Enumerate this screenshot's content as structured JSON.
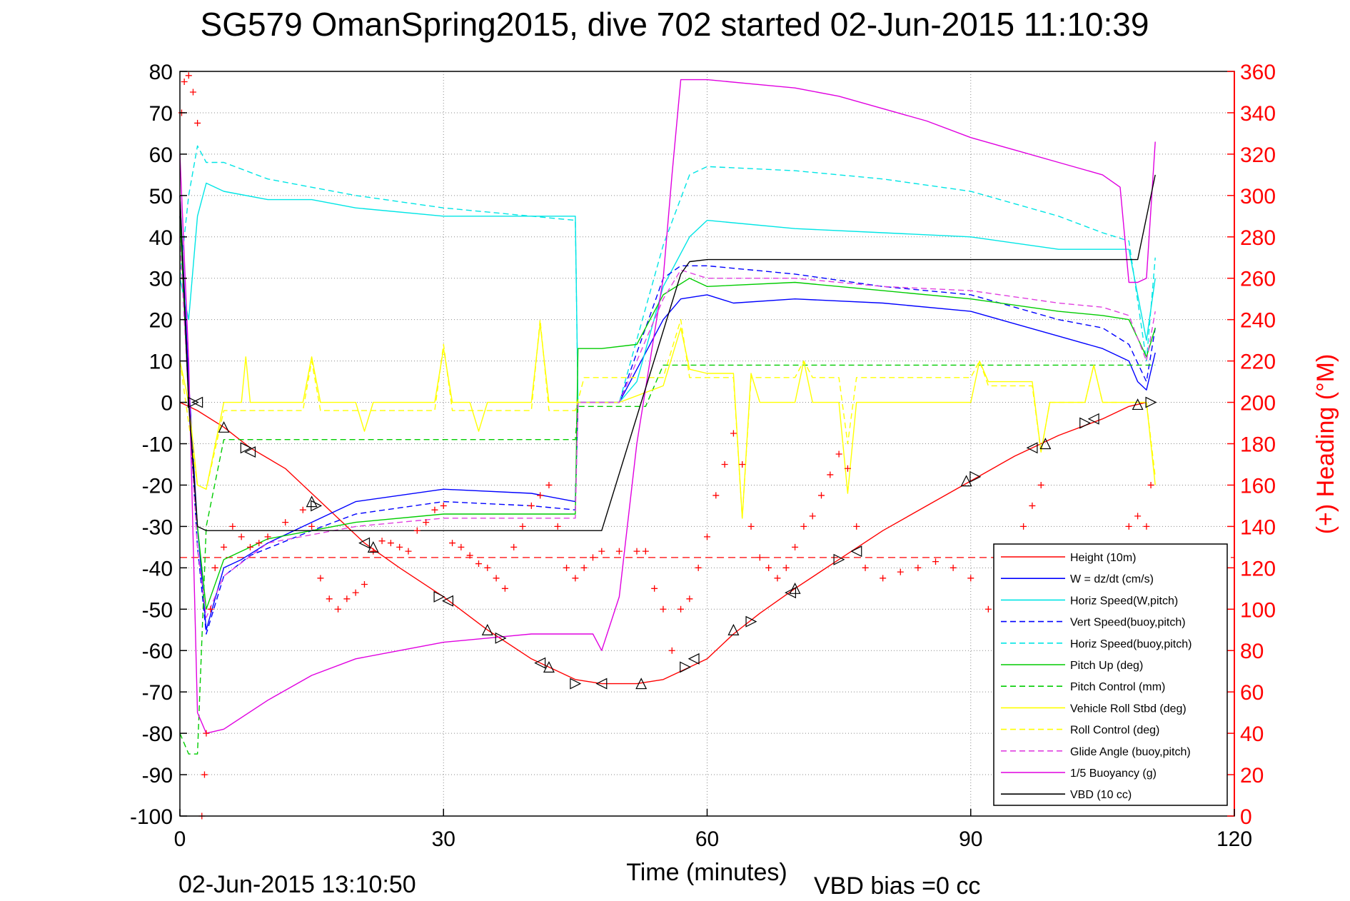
{
  "chart_data": {
    "type": "line",
    "title": "SG579 OmanSpring2015, dive 702 started 02-Jun-2015 11:10:39",
    "xlabel": "Time (minutes)",
    "ylabel_right": "(+) Heading (°M)",
    "xlim": [
      0,
      120
    ],
    "ylim": [
      -100,
      80
    ],
    "ylim_right": [
      0,
      360
    ],
    "x_ticks": [
      "0",
      "30",
      "60",
      "90",
      "120"
    ],
    "y_ticks": [
      "80",
      "70",
      "60",
      "50",
      "40",
      "30",
      "20",
      "10",
      "0",
      "-10",
      "-20",
      "-30",
      "-40",
      "-50",
      "-60",
      "-70",
      "-80",
      "-90",
      "-100"
    ],
    "y_ticks_right": [
      "360",
      "340",
      "320",
      "300",
      "280",
      "260",
      "240",
      "220",
      "200",
      "180",
      "160",
      "140",
      "120",
      "100",
      "80",
      "60",
      "40",
      "20",
      "0"
    ],
    "grid": true,
    "legend_placement": "bottom-right",
    "footer_left": "02-Jun-2015 13:10:50",
    "footer_right": "VBD bias =0 cc",
    "heading_reference": 125,
    "series": [
      {
        "name": "Height (10m)",
        "color": "#ff0000",
        "dash": "solid",
        "x": [
          0,
          1,
          2,
          5,
          8,
          12,
          15,
          18,
          21,
          25,
          30,
          35,
          40,
          45,
          48,
          52,
          55,
          57,
          60,
          63,
          66,
          70,
          75,
          80,
          85,
          90,
          95,
          100,
          105,
          108,
          110
        ],
        "y": [
          0,
          -1,
          -2,
          -6,
          -11,
          -16,
          -22,
          -28,
          -34,
          -40,
          -47,
          -55,
          -62,
          -67,
          -68,
          -68,
          -67,
          -65,
          -62,
          -56,
          -51,
          -45,
          -38,
          -31,
          -25,
          -19,
          -13,
          -8,
          -4,
          -1,
          0
        ]
      },
      {
        "name": "W = dz/dt (cm/s)",
        "color": "#0000ff",
        "dash": "solid",
        "x": [
          0,
          1,
          2,
          3,
          5,
          7,
          10,
          15,
          20,
          30,
          40,
          45,
          45.3,
          50,
          55,
          57,
          60,
          63,
          70,
          80,
          90,
          100,
          105,
          108,
          109,
          110,
          111
        ],
        "y": [
          50,
          5,
          -30,
          -55,
          -40,
          -38,
          -34,
          -29,
          -24,
          -21,
          -22,
          -24,
          0,
          0,
          20,
          25,
          26,
          24,
          25,
          24,
          22,
          16,
          13,
          10,
          5,
          3,
          12
        ]
      },
      {
        "name": "Horiz Speed(W,pitch)",
        "color": "#00e5e5",
        "dash": "solid",
        "x": [
          0,
          1,
          2,
          3,
          5,
          10,
          15,
          20,
          30,
          40,
          45,
          45.3,
          50,
          52,
          55,
          58,
          60,
          70,
          80,
          90,
          100,
          105,
          108,
          110,
          111
        ],
        "y": [
          30,
          20,
          45,
          53,
          51,
          49,
          49,
          47,
          45,
          45,
          45,
          0,
          0,
          5,
          28,
          40,
          44,
          42,
          41,
          40,
          37,
          37,
          37,
          15,
          30
        ]
      },
      {
        "name": "Vert Speed(buoy,pitch)",
        "color": "#0000ff",
        "dash": "dashed",
        "x": [
          0,
          1,
          2,
          3,
          5,
          8,
          15,
          20,
          30,
          40,
          45,
          45.3,
          50,
          55,
          57,
          60,
          70,
          80,
          90,
          100,
          105,
          108,
          110,
          111
        ],
        "y": [
          45,
          0,
          -35,
          -56,
          -42,
          -37,
          -31,
          -27,
          -24,
          -25,
          -26,
          0,
          0,
          30,
          33,
          33,
          31,
          28,
          26,
          20,
          18,
          14,
          5,
          18
        ]
      },
      {
        "name": "Horiz Speed(buoy,pitch)",
        "color": "#00e5e5",
        "dash": "dashed",
        "x": [
          0,
          1,
          2,
          3,
          5,
          10,
          20,
          30,
          40,
          45,
          45.3,
          50,
          55,
          58,
          60,
          70,
          80,
          90,
          100,
          105,
          108,
          110,
          111
        ],
        "y": [
          30,
          50,
          62,
          58,
          58,
          54,
          50,
          47,
          45,
          44,
          0,
          0,
          38,
          55,
          57,
          56,
          54,
          51,
          45,
          41,
          39,
          10,
          35
        ]
      },
      {
        "name": "Pitch Up (deg)",
        "color": "#00cc00",
        "dash": "solid",
        "x": [
          0,
          1,
          2,
          3,
          5,
          10,
          20,
          30,
          40,
          45,
          45.3,
          48,
          52,
          55,
          58,
          60,
          70,
          80,
          90,
          100,
          105,
          108,
          110,
          111
        ],
        "y": [
          45,
          0,
          -30,
          -50,
          -38,
          -33,
          -29,
          -27,
          -27,
          -27,
          13,
          13,
          14,
          26,
          30,
          28,
          29,
          27,
          25,
          22,
          21,
          20,
          11,
          18
        ]
      },
      {
        "name": "Pitch Control (mm)",
        "color": "#00cc00",
        "dash": "dashed",
        "x": [
          0,
          1,
          2,
          3,
          5,
          45,
          45.3,
          48,
          53,
          55,
          110,
          111
        ],
        "y": [
          -80,
          -85,
          -85,
          -30,
          -9,
          -9,
          -1,
          -1,
          -1,
          9,
          9,
          9
        ]
      },
      {
        "name": "Vehicle Roll Stbd (deg)",
        "color": "#ffff00",
        "dash": "solid",
        "x": [
          0,
          1,
          2,
          3,
          5,
          7,
          7.5,
          8,
          9,
          14,
          15,
          16,
          20,
          21,
          22,
          29,
          30,
          31,
          33,
          34,
          35,
          40,
          41,
          42,
          45,
          50,
          55,
          57,
          58,
          60,
          63,
          64,
          65,
          66,
          70,
          71,
          72,
          75,
          76,
          77,
          90,
          91,
          92,
          97,
          98,
          99,
          103,
          104,
          105,
          110,
          111
        ],
        "y": [
          10,
          0,
          -20,
          -21,
          0,
          0,
          11,
          0,
          0,
          0,
          11,
          0,
          0,
          -7,
          0,
          0,
          13,
          0,
          0,
          -7,
          0,
          0,
          19,
          0,
          0,
          0,
          4,
          18,
          8,
          7,
          7,
          -28,
          7,
          0,
          0,
          10,
          0,
          0,
          -22,
          0,
          0,
          10,
          5,
          5,
          -12,
          0,
          0,
          9,
          0,
          0,
          -20
        ]
      },
      {
        "name": "Roll Control (deg)",
        "color": "#ffff00",
        "dash": "dashed",
        "x": [
          0,
          2,
          3,
          5,
          8,
          14,
          15,
          16,
          29,
          30,
          31,
          40,
          41,
          42,
          45,
          46,
          50,
          52,
          55,
          57,
          58,
          60,
          63,
          64,
          65,
          70,
          71,
          72,
          75,
          76,
          77,
          90,
          91,
          92,
          97,
          98,
          99,
          103,
          104,
          105,
          110,
          111
        ],
        "y": [
          10,
          -20,
          -21,
          -2,
          -2,
          -2,
          10,
          -2,
          -2,
          14,
          -2,
          -2,
          20,
          -2,
          -2,
          6,
          6,
          6,
          6,
          20,
          6,
          6,
          6,
          -28,
          6,
          6,
          10,
          6,
          6,
          -10,
          6,
          6,
          10,
          4,
          4,
          -12,
          0,
          0,
          9,
          0,
          0,
          -18
        ]
      },
      {
        "name": "Glide Angle (buoy,pitch)",
        "color": "#e040e0",
        "dash": "dashed",
        "x": [
          0,
          1,
          2,
          3,
          5,
          10,
          20,
          30,
          40,
          45,
          45.3,
          50,
          55,
          57,
          60,
          70,
          80,
          90,
          100,
          105,
          108,
          110,
          111
        ],
        "y": [
          40,
          0,
          -35,
          -52,
          -42,
          -34,
          -30,
          -28,
          -28,
          -28,
          0,
          0,
          25,
          32,
          30,
          30,
          28,
          27,
          24,
          23,
          21,
          10,
          22
        ]
      },
      {
        "name": "1/5 Buoyancy (g)",
        "color": "#e000e0",
        "dash": "solid",
        "x": [
          0,
          1,
          2,
          3,
          5,
          10,
          15,
          20,
          25,
          30,
          35,
          40,
          45,
          47,
          48,
          50,
          52,
          55,
          56,
          57,
          60,
          65,
          70,
          75,
          80,
          85,
          90,
          95,
          100,
          105,
          107,
          108,
          109,
          110,
          111
        ],
        "y": [
          60,
          10,
          -75,
          -80,
          -79,
          -72,
          -66,
          -62,
          -60,
          -58,
          -57,
          -56,
          -56,
          -56,
          -60,
          -47,
          -10,
          30,
          55,
          78,
          78,
          77,
          76,
          74,
          71,
          68,
          64,
          61,
          58,
          55,
          52,
          29,
          29,
          30,
          63
        ]
      },
      {
        "name": "VBD (10 cc)",
        "color": "#000000",
        "dash": "solid",
        "x": [
          0,
          1,
          2,
          3,
          48,
          57,
          58,
          60,
          70,
          80,
          90,
          100,
          108,
          109,
          111
        ],
        "y": [
          50,
          0,
          -30,
          -31,
          -31,
          31,
          34,
          34.5,
          34.5,
          34.5,
          34.5,
          34.5,
          34.5,
          34.5,
          55
        ]
      }
    ],
    "heading_points": {
      "name": "(+) Heading (°M)",
      "color": "#ff0000",
      "x": [
        0.2,
        0.5,
        1,
        1.5,
        2,
        2.5,
        2.8,
        3,
        3.5,
        4,
        5,
        6,
        7,
        8,
        9,
        10,
        12,
        14,
        15,
        16,
        17,
        18,
        19,
        20,
        21,
        22,
        23,
        24,
        25,
        26,
        27,
        28,
        29,
        30,
        31,
        32,
        33,
        34,
        35,
        36,
        37,
        38,
        39,
        40,
        41,
        42,
        43,
        44,
        45,
        46,
        47,
        48,
        50,
        52,
        53,
        54,
        55,
        56,
        57,
        58,
        59,
        60,
        61,
        62,
        63,
        64,
        65,
        66,
        67,
        68,
        69,
        70,
        71,
        72,
        73,
        74,
        75,
        76,
        77,
        78,
        80,
        82,
        84,
        86,
        88,
        90,
        92,
        94,
        95,
        96,
        97,
        98,
        99,
        100,
        102,
        104,
        106,
        107,
        108,
        109,
        110,
        110.5
      ],
      "y": [
        340,
        355,
        358,
        350,
        335,
        0,
        20,
        40,
        100,
        120,
        130,
        140,
        135,
        130,
        132,
        135,
        142,
        148,
        140,
        115,
        105,
        100,
        105,
        108,
        112,
        128,
        133,
        132,
        130,
        128,
        138,
        142,
        148,
        150,
        132,
        130,
        126,
        122,
        120,
        115,
        110,
        130,
        140,
        150,
        155,
        160,
        140,
        120,
        115,
        120,
        125,
        128,
        128,
        128,
        128,
        110,
        100,
        80,
        100,
        105,
        120,
        135,
        155,
        170,
        185,
        170,
        140,
        125,
        120,
        115,
        120,
        130,
        140,
        145,
        155,
        165,
        175,
        168,
        140,
        120,
        115,
        118,
        120,
        123,
        120,
        115,
        100,
        110,
        130,
        140,
        150,
        160,
        130,
        120,
        110,
        115,
        120,
        120,
        140,
        145,
        140,
        160
      ]
    },
    "markers_down": {
      "color": "#000000",
      "x": [
        1.5,
        2,
        5,
        7.5,
        8,
        15,
        15.5,
        21,
        22,
        29.5,
        30.5,
        35,
        36.5,
        41,
        42,
        45,
        48,
        52.5,
        57.5,
        58.5,
        63,
        65,
        69.5,
        70,
        75,
        77,
        89.5,
        90.5,
        97,
        98.5,
        103,
        104,
        109,
        110.5
      ],
      "y": [
        0,
        0,
        -6,
        -11,
        -12,
        -24,
        -25,
        -34,
        -35,
        -47,
        -48,
        -55,
        -57,
        -63,
        -64,
        -68,
        -68,
        -68,
        -64,
        -62,
        -55,
        -53,
        -46,
        -45,
        -38,
        -36,
        -19,
        -18,
        -11,
        -10,
        -5,
        -4,
        -0.5,
        0
      ]
    }
  }
}
